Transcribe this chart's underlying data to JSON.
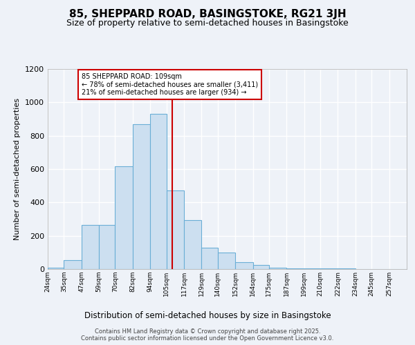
{
  "title": "85, SHEPPARD ROAD, BASINGSTOKE, RG21 3JH",
  "subtitle": "Size of property relative to semi-detached houses in Basingstoke",
  "xlabel": "Distribution of semi-detached houses by size in Basingstoke",
  "ylabel": "Number of semi-detached properties",
  "annotation_line1": "85 SHEPPARD ROAD: 109sqm",
  "annotation_line2": "← 78% of semi-detached houses are smaller (3,411)",
  "annotation_line3": "21% of semi-detached houses are larger (934) →",
  "bin_edges": [
    24,
    35,
    47,
    59,
    70,
    82,
    94,
    105,
    117,
    129,
    140,
    152,
    164,
    175,
    187,
    199,
    210,
    222,
    234,
    245,
    257,
    269
  ],
  "bar_heights": [
    10,
    55,
    265,
    265,
    615,
    870,
    930,
    470,
    295,
    130,
    100,
    40,
    25,
    10,
    5,
    5,
    5,
    3,
    2,
    1,
    1
  ],
  "tick_labels": [
    "24sqm",
    "35sqm",
    "47sqm",
    "59sqm",
    "70sqm",
    "82sqm",
    "94sqm",
    "105sqm",
    "117sqm",
    "129sqm",
    "140sqm",
    "152sqm",
    "164sqm",
    "175sqm",
    "187sqm",
    "199sqm",
    "210sqm",
    "222sqm",
    "234sqm",
    "245sqm",
    "257sqm"
  ],
  "bar_facecolor": "#ccdff0",
  "bar_edgecolor": "#6aaed6",
  "vline_color": "#cc0000",
  "vline_x": 109,
  "box_edgecolor": "#cc0000",
  "ylim": [
    0,
    1200
  ],
  "yticks": [
    0,
    200,
    400,
    600,
    800,
    1000,
    1200
  ],
  "background_color": "#eef2f8",
  "grid_color": "#ffffff",
  "footer": "Contains HM Land Registry data © Crown copyright and database right 2025.\nContains public sector information licensed under the Open Government Licence v3.0.",
  "title_fontsize": 11,
  "subtitle_fontsize": 9,
  "xlabel_fontsize": 8.5,
  "ylabel_fontsize": 8,
  "annotation_fontsize": 7,
  "footer_fontsize": 6,
  "tick_fontsize": 6.5
}
